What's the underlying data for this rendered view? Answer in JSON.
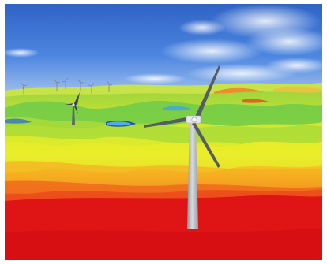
{
  "scene": {
    "kind": "3d-wind-farm-visualization",
    "frame_color": "#ffffff",
    "sky": {
      "top": "#2f63c6",
      "mid": "#4d86e0",
      "horizon": "#a9c6ef",
      "cloud": "#f4f7fc"
    },
    "terrain": {
      "colormap": [
        "#1f3fb0",
        "#4bb8e6",
        "#7fd14a",
        "#d8e82c",
        "#f6ef2a",
        "#f7a11f",
        "#ea3b1a",
        "#de1010"
      ],
      "foreground": "#e5151a"
    },
    "turbine": {
      "tower": "#c7ccd2",
      "blade": "#5a6068",
      "nacelle": "#e6e8eb"
    },
    "distant_turbine_count": 6,
    "near_turbine_count": 2
  }
}
